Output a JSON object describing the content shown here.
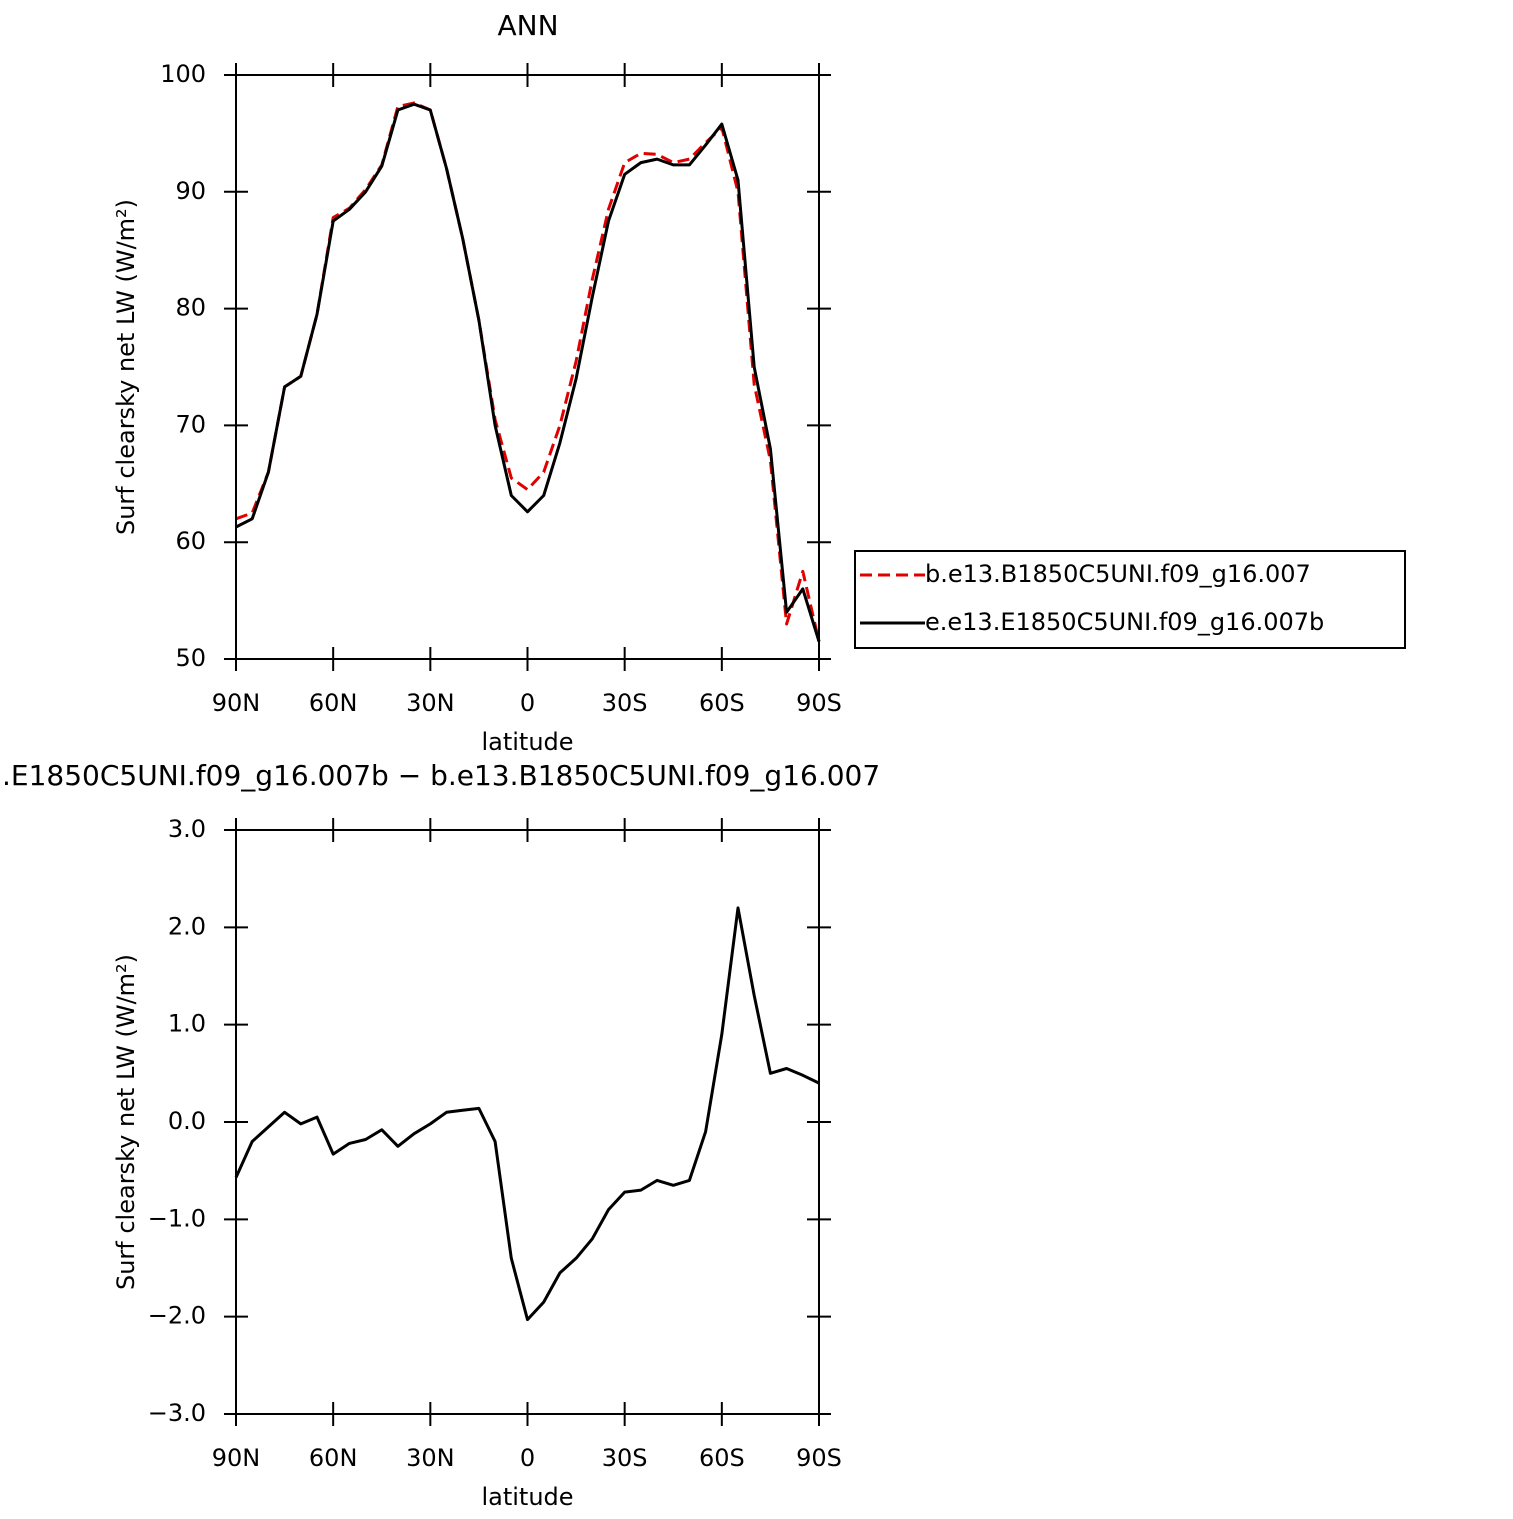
{
  "chart_data": [
    {
      "type": "line",
      "title": "ANN",
      "xlabel": "latitude",
      "ylabel": "Surf clearsky net LW (W/m²)",
      "x": [
        90,
        85,
        80,
        75,
        70,
        65,
        60,
        55,
        50,
        45,
        40,
        35,
        30,
        25,
        20,
        15,
        10,
        5,
        0,
        -5,
        -10,
        -15,
        -20,
        -25,
        -30,
        -35,
        -40,
        -45,
        -50,
        -55,
        -60,
        -65,
        -70,
        -75,
        -80,
        -85,
        -90
      ],
      "series": [
        {
          "name": "b.e13.B1850C5UNI.f09_g16.007",
          "color": "#e00000",
          "line_style": "dashed",
          "values": [
            62,
            62.5,
            66,
            73.3,
            74.2,
            79.5,
            87.8,
            88.6,
            90.2,
            92.3,
            97.3,
            97.6,
            97,
            92,
            86,
            79,
            70.5,
            65.5,
            64.5,
            66,
            70,
            75.5,
            82.5,
            88.5,
            92.5,
            93.3,
            93.2,
            92.5,
            92.8,
            94.2,
            95.5,
            90,
            73.5,
            67,
            53,
            57.5,
            51.5
          ]
        },
        {
          "name": "e.e13.E1850C5UNI.f09_g16.007b",
          "color": "#000000",
          "line_style": "solid",
          "values": [
            61.3,
            62,
            66,
            73.3,
            74.2,
            79.5,
            87.5,
            88.5,
            90,
            92.2,
            97,
            97.5,
            97,
            92,
            86,
            79,
            70,
            64,
            62.6,
            64,
            68.5,
            74,
            81,
            87.5,
            91.5,
            92.5,
            92.8,
            92.3,
            92.3,
            94,
            95.8,
            91,
            75,
            68,
            54,
            56,
            51.5
          ]
        }
      ],
      "xlim": [
        90,
        -90
      ],
      "xticks": [
        {
          "value": 90,
          "label": "90N"
        },
        {
          "value": 60,
          "label": "60N"
        },
        {
          "value": 30,
          "label": "30N"
        },
        0,
        {
          "value": -30,
          "label": "30S"
        },
        {
          "value": -60,
          "label": "60S"
        },
        {
          "value": -90,
          "label": "90S"
        }
      ],
      "ylim": [
        50,
        100
      ],
      "yticks": [
        50,
        60,
        70,
        80,
        90,
        100
      ],
      "legend": "right"
    },
    {
      "type": "line",
      "title": ".E1850C5UNI.f09_g16.007b − b.e13.B1850C5UNI.f09_g16.007",
      "xlabel": "latitude",
      "ylabel": "Surf clearsky net LW (W/m²)",
      "x": [
        90,
        85,
        80,
        75,
        70,
        65,
        60,
        55,
        50,
        45,
        40,
        35,
        30,
        25,
        20,
        15,
        10,
        5,
        0,
        -5,
        -10,
        -15,
        -20,
        -25,
        -30,
        -35,
        -40,
        -45,
        -50,
        -55,
        -60,
        -65,
        -70,
        -75,
        -80,
        -85,
        -90
      ],
      "series": [
        {
          "color": "#000000",
          "line_style": "solid",
          "values": [
            -0.57,
            -0.2,
            -0.05,
            0.1,
            -0.02,
            0.05,
            -0.33,
            -0.22,
            -0.18,
            -0.08,
            -0.25,
            -0.12,
            -0.02,
            0.1,
            0.12,
            0.14,
            -0.2,
            -1.4,
            -2.03,
            -1.85,
            -1.55,
            -1.4,
            -1.2,
            -0.9,
            -0.72,
            -0.7,
            -0.6,
            -0.65,
            -0.6,
            -0.1,
            0.9,
            2.2,
            1.3,
            0.5,
            0.55,
            0.48,
            0.4
          ]
        }
      ],
      "xlim": [
        90,
        -90
      ],
      "xticks": [
        {
          "value": 90,
          "label": "90N"
        },
        {
          "value": 60,
          "label": "60N"
        },
        {
          "value": 30,
          "label": "30N"
        },
        0,
        {
          "value": -30,
          "label": "30S"
        },
        {
          "value": -60,
          "label": "60S"
        },
        {
          "value": -90,
          "label": "90S"
        }
      ],
      "ylim": [
        -3,
        3
      ],
      "yticks": [
        {
          "value": -3,
          "label": "−3.0"
        },
        {
          "value": -2,
          "label": "−2.0"
        },
        {
          "value": -1,
          "label": "−1.0"
        },
        {
          "value": 0,
          "label": "0.0"
        },
        {
          "value": 1,
          "label": "1.0"
        },
        {
          "value": 2,
          "label": "2.0"
        },
        {
          "value": 3,
          "label": "3.0"
        }
      ]
    }
  ]
}
